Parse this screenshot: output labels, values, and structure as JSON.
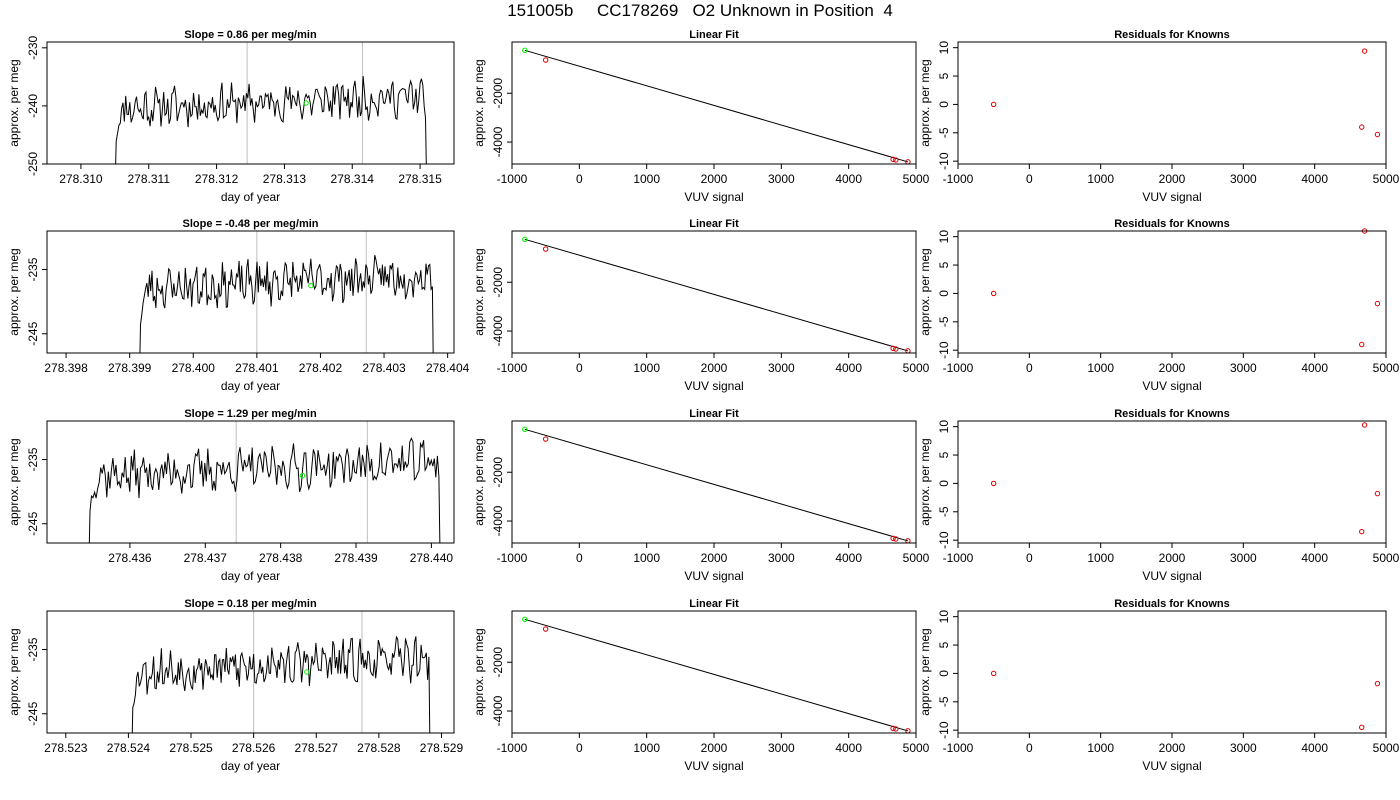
{
  "title": "151005b     CC178269   O2 Unknown in Position  4",
  "colors": {
    "trace": "#000000",
    "vline": "#bebebe",
    "green": "#00ee00",
    "red": "#dd0000",
    "fit": "#000000"
  },
  "chart_data": [
    {
      "type": "line",
      "row": 0,
      "kind": "trace",
      "title": "Slope =  0.86  per meg/min",
      "xlabel": "day of year",
      "ylabel": "approx. per meg",
      "xlim": [
        278.3095,
        278.3155
      ],
      "ylim": [
        -250,
        -229
      ],
      "xticks": [
        278.31,
        278.311,
        278.312,
        278.313,
        278.314,
        278.315
      ],
      "xtick_labels": [
        "278.310",
        "278.311",
        "278.312",
        "278.313",
        "278.314",
        "278.315"
      ],
      "yticks": [
        -250,
        -240,
        -230
      ],
      "ytick_labels": [
        "-250",
        "-240",
        "-230"
      ],
      "trace": {
        "x_start": 278.3105,
        "x_end": 278.3151,
        "baseline": -240.5,
        "plateau": [
          -244,
          -234
        ],
        "seed": 11
      },
      "vlines": [
        278.31245,
        278.31415
      ],
      "green_point": {
        "x": 278.31332,
        "y": -239.5
      }
    },
    {
      "type": "scatter",
      "row": 0,
      "kind": "fit",
      "title": "Linear Fit",
      "xlabel": "VUV signal",
      "ylabel": "approx. per meg",
      "xlim": [
        -1000,
        5000
      ],
      "ylim": [
        -4900,
        100
      ],
      "xticks": [
        -1000,
        0,
        1000,
        2000,
        3000,
        4000,
        5000
      ],
      "xtick_labels": [
        "-1000",
        "0",
        "1000",
        "2000",
        "3000",
        "4000",
        "5000"
      ],
      "yticks": [
        -4000,
        -2000
      ],
      "ytick_labels": [
        "-4000",
        "-2000"
      ],
      "line": {
        "x": [
          -810,
          4880
        ],
        "y": [
          -240,
          -4815
        ]
      },
      "red_points": [
        {
          "x": -500,
          "y": -640
        },
        {
          "x": 4660,
          "y": -4710
        },
        {
          "x": 4700,
          "y": -4735
        },
        {
          "x": 4880,
          "y": -4810
        }
      ],
      "green_point": {
        "x": -810,
        "y": -240
      }
    },
    {
      "type": "scatter",
      "row": 0,
      "kind": "resid",
      "title": "Residuals for Knowns",
      "xlabel": "VUV signal",
      "ylabel": "approx. per meg",
      "xlim": [
        -1000,
        5000
      ],
      "ylim": [
        -10.5,
        11
      ],
      "xticks": [
        -1000,
        0,
        1000,
        2000,
        3000,
        4000,
        5000
      ],
      "xtick_labels": [
        "-1000",
        "0",
        "1000",
        "2000",
        "3000",
        "4000",
        "5000"
      ],
      "yticks": [
        -10,
        -5,
        0,
        5,
        10
      ],
      "ytick_labels": [
        "-10",
        "-5",
        "0",
        "5",
        "10"
      ],
      "red_points": [
        {
          "x": -500,
          "y": 0
        },
        {
          "x": 4660,
          "y": -4
        },
        {
          "x": 4700,
          "y": 9.4
        },
        {
          "x": 4880,
          "y": -5.3
        }
      ]
    },
    {
      "type": "line",
      "row": 1,
      "kind": "trace",
      "title": "Slope =  -0.48  per meg/min",
      "xlabel": "day of year",
      "ylabel": "approx. per meg",
      "xlim": [
        278.3977,
        278.4041
      ],
      "ylim": [
        -248,
        -229
      ],
      "xticks": [
        278.398,
        278.399,
        278.4,
        278.401,
        278.402,
        278.403,
        278.404
      ],
      "xtick_labels": [
        "278.398",
        "278.399",
        "278.400",
        "278.401",
        "278.402",
        "278.403",
        "278.404"
      ],
      "yticks": [
        -245,
        -235
      ],
      "ytick_labels": [
        "-245",
        "-235"
      ],
      "trace": {
        "x_start": 278.39915,
        "x_end": 278.40378,
        "baseline": -238,
        "plateau": [
          -241,
          -234
        ],
        "seed": 23
      },
      "vlines": [
        278.401,
        278.40272
      ],
      "green_point": {
        "x": 278.40185,
        "y": -237.5
      }
    },
    {
      "type": "scatter",
      "row": 1,
      "kind": "fit",
      "title": "Linear Fit",
      "xlabel": "VUV signal",
      "ylabel": "approx. per meg",
      "xlim": [
        -1000,
        5000
      ],
      "ylim": [
        -4900,
        100
      ],
      "xticks": [
        -1000,
        0,
        1000,
        2000,
        3000,
        4000,
        5000
      ],
      "xtick_labels": [
        "-1000",
        "0",
        "1000",
        "2000",
        "3000",
        "4000",
        "5000"
      ],
      "yticks": [
        -4000,
        -2000
      ],
      "ytick_labels": [
        "-4000",
        "-2000"
      ],
      "line": {
        "x": [
          -810,
          4880
        ],
        "y": [
          -240,
          -4815
        ]
      },
      "red_points": [
        {
          "x": -500,
          "y": -640
        },
        {
          "x": 4660,
          "y": -4710
        },
        {
          "x": 4700,
          "y": -4735
        },
        {
          "x": 4880,
          "y": -4810
        }
      ],
      "green_point": {
        "x": -810,
        "y": -240
      }
    },
    {
      "type": "scatter",
      "row": 1,
      "kind": "resid",
      "title": "Residuals for Knowns",
      "xlabel": "VUV signal",
      "ylabel": "approx. per meg",
      "xlim": [
        -1000,
        5000
      ],
      "ylim": [
        -10.5,
        11
      ],
      "xticks": [
        -1000,
        0,
        1000,
        2000,
        3000,
        4000,
        5000
      ],
      "xtick_labels": [
        "-1000",
        "0",
        "1000",
        "2000",
        "3000",
        "4000",
        "5000"
      ],
      "yticks": [
        -10,
        -5,
        0,
        5,
        10
      ],
      "ytick_labels": [
        "-10",
        "-5",
        "0",
        "5",
        "10"
      ],
      "red_points": [
        {
          "x": -500,
          "y": 0
        },
        {
          "x": 4660,
          "y": -9
        },
        {
          "x": 4700,
          "y": 11
        },
        {
          "x": 4880,
          "y": -1.8
        }
      ]
    },
    {
      "type": "line",
      "row": 2,
      "kind": "trace",
      "title": "Slope =  1.29  per meg/min",
      "xlabel": "day of year",
      "ylabel": "approx. per meg",
      "xlim": [
        278.4349,
        278.4403
      ],
      "ylim": [
        -248,
        -229
      ],
      "xticks": [
        278.436,
        278.437,
        278.438,
        278.439,
        278.44
      ],
      "xtick_labels": [
        "278.436",
        "278.437",
        "278.438",
        "278.439",
        "278.440"
      ],
      "yticks": [
        -245,
        -235
      ],
      "ytick_labels": [
        "-245",
        "-235"
      ],
      "trace": {
        "x_start": 278.43545,
        "x_end": 278.44012,
        "baseline": -237.5,
        "plateau": [
          -241,
          -232
        ],
        "seed": 37
      },
      "vlines": [
        278.43741,
        278.43915
      ],
      "green_point": {
        "x": 278.43829,
        "y": -237.5
      }
    },
    {
      "type": "scatter",
      "row": 2,
      "kind": "fit",
      "title": "Linear Fit",
      "xlabel": "VUV signal",
      "ylabel": "approx. per meg",
      "xlim": [
        -1000,
        5000
      ],
      "ylim": [
        -4900,
        100
      ],
      "xticks": [
        -1000,
        0,
        1000,
        2000,
        3000,
        4000,
        5000
      ],
      "xtick_labels": [
        "-1000",
        "0",
        "1000",
        "2000",
        "3000",
        "4000",
        "5000"
      ],
      "yticks": [
        -4000,
        -2000
      ],
      "ytick_labels": [
        "-4000",
        "-2000"
      ],
      "line": {
        "x": [
          -810,
          4880
        ],
        "y": [
          -240,
          -4815
        ]
      },
      "red_points": [
        {
          "x": -500,
          "y": -640
        },
        {
          "x": 4660,
          "y": -4710
        },
        {
          "x": 4700,
          "y": -4735
        },
        {
          "x": 4880,
          "y": -4810
        }
      ],
      "green_point": {
        "x": -810,
        "y": -240
      }
    },
    {
      "type": "scatter",
      "row": 2,
      "kind": "resid",
      "title": "Residuals for Knowns",
      "xlabel": "VUV signal",
      "ylabel": "approx. per meg",
      "xlim": [
        -1000,
        5000
      ],
      "ylim": [
        -10.5,
        11
      ],
      "xticks": [
        -1000,
        0,
        1000,
        2000,
        3000,
        4000,
        5000
      ],
      "xtick_labels": [
        "-1000",
        "0",
        "1000",
        "2000",
        "3000",
        "4000",
        "5000"
      ],
      "yticks": [
        -10,
        -5,
        0,
        5,
        10
      ],
      "ytick_labels": [
        "-10",
        "-5",
        "0",
        "5",
        "10"
      ],
      "red_points": [
        {
          "x": -500,
          "y": 0
        },
        {
          "x": 4660,
          "y": -8.5
        },
        {
          "x": 4700,
          "y": 10.3
        },
        {
          "x": 4880,
          "y": -1.8
        }
      ]
    },
    {
      "type": "line",
      "row": 3,
      "kind": "trace",
      "title": "Slope =  0.18  per meg/min",
      "xlabel": "day of year",
      "ylabel": "approx. per meg",
      "xlim": [
        278.5227,
        278.5292
      ],
      "ylim": [
        -248,
        -229
      ],
      "xticks": [
        278.523,
        278.524,
        278.525,
        278.526,
        278.527,
        278.528,
        278.529
      ],
      "xtick_labels": [
        "278.523",
        "278.524",
        "278.525",
        "278.526",
        "278.527",
        "278.528",
        "278.529"
      ],
      "yticks": [
        -245,
        -235
      ],
      "ytick_labels": [
        "-245",
        "-235"
      ],
      "trace": {
        "x_start": 278.52405,
        "x_end": 278.52882,
        "baseline": -238.5,
        "plateau": [
          -242,
          -234
        ],
        "seed": 53
      },
      "vlines": [
        278.526,
        278.52773
      ],
      "green_point": {
        "x": 278.52685,
        "y": -238.5
      }
    },
    {
      "type": "scatter",
      "row": 3,
      "kind": "fit",
      "title": "Linear Fit",
      "xlabel": "VUV signal",
      "ylabel": "approx. per meg",
      "xlim": [
        -1000,
        5000
      ],
      "ylim": [
        -4900,
        100
      ],
      "xticks": [
        -1000,
        0,
        1000,
        2000,
        3000,
        4000,
        5000
      ],
      "xtick_labels": [
        "-1000",
        "0",
        "1000",
        "2000",
        "3000",
        "4000",
        "5000"
      ],
      "yticks": [
        -4000,
        -2000
      ],
      "ytick_labels": [
        "-4000",
        "-2000"
      ],
      "line": {
        "x": [
          -810,
          4880
        ],
        "y": [
          -240,
          -4815
        ]
      },
      "red_points": [
        {
          "x": -500,
          "y": -640
        },
        {
          "x": 4660,
          "y": -4710
        },
        {
          "x": 4700,
          "y": -4735
        },
        {
          "x": 4880,
          "y": -4810
        }
      ],
      "green_point": {
        "x": -810,
        "y": -240
      }
    },
    {
      "type": "scatter",
      "row": 3,
      "kind": "resid",
      "title": "Residuals for Knowns",
      "xlabel": "VUV signal",
      "ylabel": "approx. per meg",
      "xlim": [
        -1000,
        5000
      ],
      "ylim": [
        -10.5,
        11
      ],
      "xticks": [
        -1000,
        0,
        1000,
        2000,
        3000,
        4000,
        5000
      ],
      "xtick_labels": [
        "-1000",
        "0",
        "1000",
        "2000",
        "3000",
        "4000",
        "5000"
      ],
      "yticks": [
        -10,
        -5,
        0,
        5,
        10
      ],
      "ytick_labels": [
        "-10",
        "-5",
        "0",
        "5",
        "10"
      ],
      "red_points": [
        {
          "x": -500,
          "y": 0
        },
        {
          "x": 4660,
          "y": -9.5
        },
        {
          "x": 4880,
          "y": -1.8
        }
      ]
    }
  ]
}
